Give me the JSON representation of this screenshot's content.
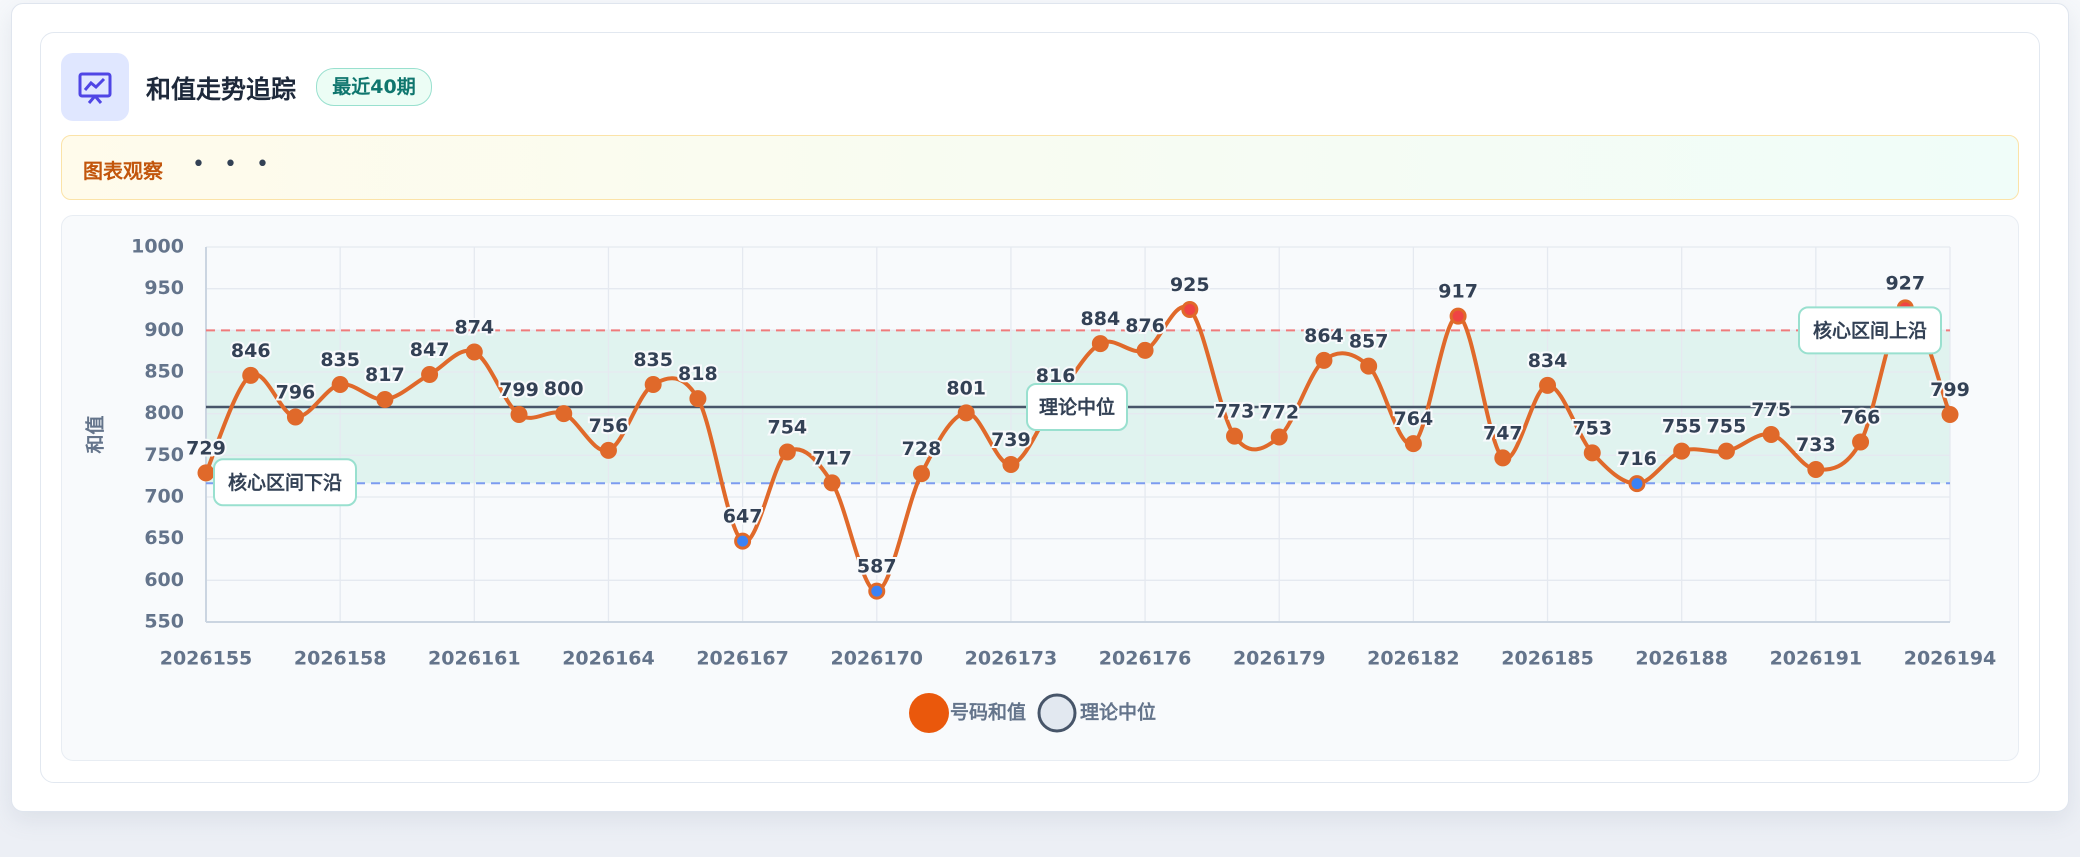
{
  "header": {
    "title": "和值走势追踪",
    "badge": "最近40期"
  },
  "observation": {
    "label": "图表观察",
    "content": "• • •"
  },
  "chart_data": {
    "type": "line",
    "ylabel": "和值",
    "x": [
      2026155,
      2026156,
      2026157,
      2026158,
      2026159,
      2026160,
      2026161,
      2026162,
      2026163,
      2026164,
      2026165,
      2026166,
      2026167,
      2026168,
      2026169,
      2026170,
      2026171,
      2026172,
      2026173,
      2026174,
      2026175,
      2026176,
      2026177,
      2026178,
      2026179,
      2026180,
      2026181,
      2026182,
      2026183,
      2026184,
      2026185,
      2026186,
      2026187,
      2026188,
      2026189,
      2026190,
      2026191,
      2026192,
      2026193,
      2026194
    ],
    "xlim": [
      2026155,
      2026194
    ],
    "xticks": [
      2026155,
      2026158,
      2026161,
      2026164,
      2026167,
      2026170,
      2026173,
      2026176,
      2026179,
      2026182,
      2026185,
      2026188,
      2026191,
      2026194
    ],
    "ylim": [
      550,
      1000
    ],
    "yticks": [
      550,
      600,
      650,
      700,
      750,
      800,
      850,
      900,
      950,
      1000
    ],
    "grid": true,
    "series": [
      {
        "name": "号码和值",
        "color": "#e0692a",
        "values": [
          729,
          846,
          796,
          835,
          817,
          847,
          874,
          799,
          800,
          756,
          835,
          818,
          647,
          754,
          717,
          587,
          728,
          801,
          739,
          816,
          884,
          876,
          925,
          773,
          772,
          864,
          857,
          764,
          917,
          747,
          834,
          753,
          716,
          755,
          755,
          775,
          733,
          766,
          927,
          799
        ]
      }
    ],
    "reference_line": {
      "name": "理论中位",
      "value": 808,
      "color": "#475569"
    },
    "band": {
      "lower": {
        "value": 716.5,
        "label": "核心区间下沿"
      },
      "upper": {
        "value": 900,
        "label": "核心区间上沿"
      },
      "color": "#10b981"
    },
    "high_color": "#ef4444",
    "low_color": "#3b82f6"
  }
}
